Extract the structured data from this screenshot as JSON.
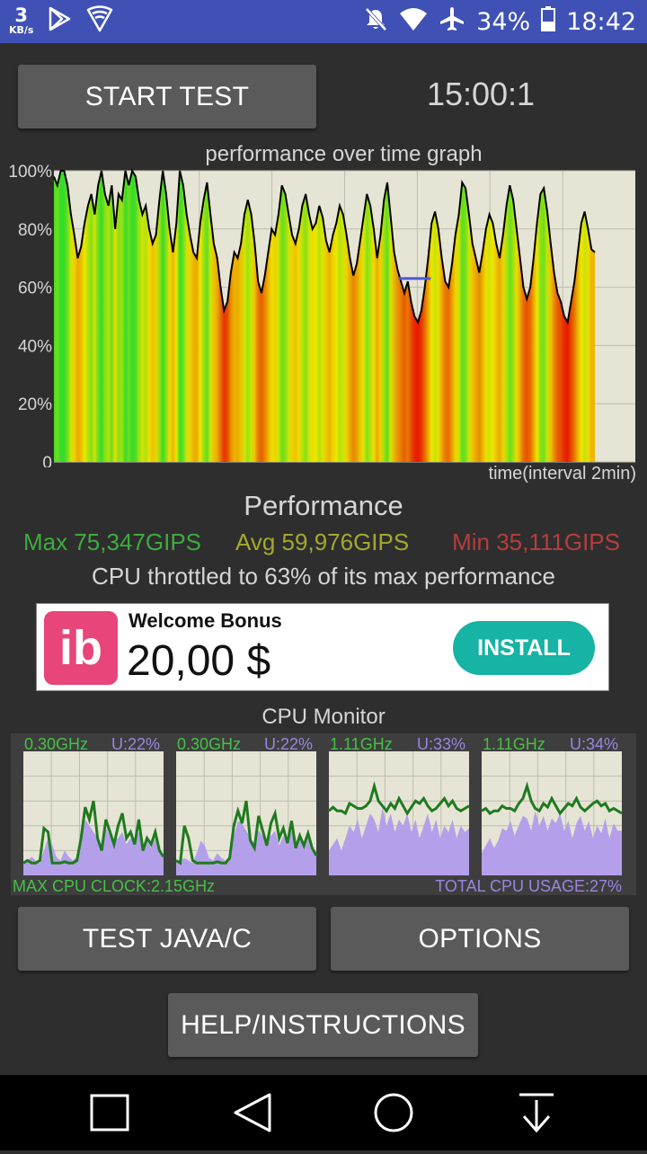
{
  "status_bar": {
    "speed_value": "3",
    "speed_unit": "KB/s",
    "battery": "34%",
    "time": "18:42",
    "left_icons": [
      "play-store-icon",
      "shield-wifi-icon"
    ],
    "right_icons": [
      "mute-icon",
      "wifi-icon",
      "airplane-icon",
      "battery-icon"
    ]
  },
  "controls": {
    "start_label": "START TEST",
    "timer": "15:00:1"
  },
  "graph": {
    "title": "performance over time graph",
    "x_label": "time(interval 2min)",
    "y_ticks": [
      "100%",
      "80%",
      "60%",
      "40%",
      "20%",
      "0"
    ]
  },
  "chart_data": {
    "type": "line",
    "title": "performance over time graph",
    "xlabel": "time(interval 2min)",
    "ylabel": "",
    "ylim": [
      0,
      100
    ],
    "y_ticks": [
      0,
      20,
      40,
      60,
      80,
      100
    ],
    "grid": true,
    "legend": "none",
    "series": [
      {
        "values": [
          98,
          95,
          100,
          100,
          95,
          85,
          78,
          70,
          74,
          82,
          88,
          92,
          85,
          95,
          100,
          92,
          88,
          95,
          80,
          92,
          90,
          100,
          95,
          100,
          98,
          90,
          85,
          88,
          80,
          75,
          78,
          90,
          100,
          92,
          80,
          72,
          82,
          100,
          95,
          85,
          78,
          72,
          70,
          82,
          90,
          96,
          85,
          75,
          70,
          60,
          52,
          55,
          65,
          72,
          70,
          75,
          85,
          90,
          85,
          75,
          62,
          58,
          64,
          72,
          80,
          78,
          85,
          95,
          92,
          85,
          78,
          75,
          80,
          88,
          92,
          85,
          80,
          82,
          88,
          84,
          76,
          72,
          78,
          82,
          88,
          85,
          78,
          70,
          64,
          68,
          76,
          84,
          92,
          88,
          80,
          70,
          78,
          90,
          96,
          84,
          72,
          66,
          62,
          58,
          62,
          55,
          50,
          48,
          52,
          60,
          70,
          82,
          86,
          80,
          70,
          62,
          60,
          68,
          78,
          85,
          96,
          94,
          85,
          75,
          70,
          65,
          72,
          80,
          85,
          82,
          75,
          70,
          78,
          88,
          95,
          90,
          80,
          70,
          60,
          56,
          60,
          70,
          82,
          92,
          94,
          86,
          75,
          65,
          58,
          55,
          50,
          48,
          55,
          62,
          72,
          82,
          86,
          80,
          73,
          72
        ]
      }
    ],
    "avg_marker": 63
  },
  "performance": {
    "title": "Performance",
    "max": "Max 75,347GIPS",
    "avg": "Avg 59,976GIPS",
    "min": "Min 35,111GIPS",
    "throttle": "CPU throttled to 63% of its max performance"
  },
  "ad": {
    "logo": "ib",
    "headline": "Welcome Bonus",
    "amount": "20,00 $",
    "install": "INSTALL"
  },
  "cpu_monitor": {
    "title": "CPU Monitor",
    "cores": [
      {
        "freq": "0.30GHz",
        "util": "U:22%",
        "freq_values": [
          10,
          12,
          10,
          10,
          12,
          38,
          35,
          10,
          10,
          10,
          11,
          10,
          10,
          12,
          30,
          55,
          45,
          60,
          30,
          20,
          45,
          35,
          25,
          40,
          50,
          30,
          35,
          25,
          45,
          20,
          30,
          25,
          35,
          20,
          15
        ],
        "util_values": [
          10,
          12,
          15,
          12,
          10,
          20,
          30,
          25,
          15,
          12,
          20,
          15,
          12,
          15,
          30,
          45,
          40,
          35,
          30,
          25,
          38,
          32,
          28,
          30,
          35,
          25,
          30,
          28,
          35,
          25,
          28,
          22,
          30,
          20,
          15
        ]
      },
      {
        "freq": "0.30GHz",
        "util": "U:22%",
        "freq_values": [
          12,
          10,
          40,
          30,
          12,
          10,
          10,
          10,
          10,
          10,
          11,
          10,
          10,
          14,
          40,
          52,
          42,
          60,
          28,
          22,
          48,
          36,
          24,
          42,
          50,
          30,
          38,
          26,
          44,
          22,
          32,
          24,
          34,
          22,
          16
        ],
        "util_values": [
          12,
          12,
          14,
          12,
          10,
          18,
          28,
          24,
          14,
          12,
          18,
          14,
          12,
          16,
          32,
          44,
          42,
          36,
          30,
          26,
          36,
          32,
          30,
          32,
          36,
          24,
          32,
          26,
          36,
          24,
          30,
          22,
          30,
          20,
          16
        ]
      },
      {
        "freq": "1.11GHz",
        "util": "U:33%",
        "freq_values": [
          52,
          55,
          52,
          52,
          50,
          58,
          56,
          54,
          54,
          56,
          60,
          72,
          60,
          56,
          52,
          58,
          54,
          62,
          56,
          50,
          55,
          60,
          58,
          62,
          56,
          52,
          54,
          58,
          62,
          56,
          60,
          54,
          52,
          54,
          56
        ],
        "util_values": [
          20,
          25,
          30,
          20,
          30,
          40,
          35,
          45,
          30,
          40,
          50,
          45,
          35,
          55,
          40,
          50,
          35,
          45,
          40,
          50,
          35,
          45,
          30,
          40,
          50,
          35,
          45,
          30,
          40,
          35,
          45,
          30,
          40,
          35,
          38
        ]
      },
      {
        "freq": "1.11GHz",
        "util": "U:34%",
        "freq_values": [
          52,
          54,
          50,
          52,
          52,
          56,
          54,
          54,
          52,
          58,
          62,
          72,
          60,
          54,
          52,
          58,
          55,
          62,
          56,
          50,
          54,
          58,
          56,
          62,
          55,
          52,
          55,
          58,
          60,
          56,
          58,
          52,
          54,
          52,
          50
        ],
        "util_values": [
          18,
          24,
          30,
          22,
          28,
          38,
          36,
          44,
          32,
          40,
          48,
          46,
          36,
          52,
          40,
          48,
          36,
          46,
          42,
          50,
          36,
          44,
          30,
          42,
          48,
          36,
          44,
          30,
          40,
          34,
          46,
          30,
          42,
          36,
          36
        ]
      }
    ],
    "max_clock": "MAX CPU CLOCK:2.15GHz",
    "total_usage": "TOTAL CPU USAGE:27%"
  },
  "buttons": {
    "test_java_c": "TEST JAVA/C",
    "options": "OPTIONS",
    "help": "HELP/INSTRUCTIONS"
  },
  "nav_bar": {
    "icons": [
      "recent-apps-icon",
      "back-icon",
      "home-icon",
      "notification-pull-icon"
    ]
  },
  "colors": {
    "status_bar": "#3f51b5",
    "background": "#2e2e2e",
    "graph_bg": "#e6e5d5",
    "max_text": "#3dac3d",
    "avg_text": "#a5a82e",
    "min_text": "#b53e3e",
    "ad_logo": "#e8457a",
    "install": "#17b3a4"
  }
}
